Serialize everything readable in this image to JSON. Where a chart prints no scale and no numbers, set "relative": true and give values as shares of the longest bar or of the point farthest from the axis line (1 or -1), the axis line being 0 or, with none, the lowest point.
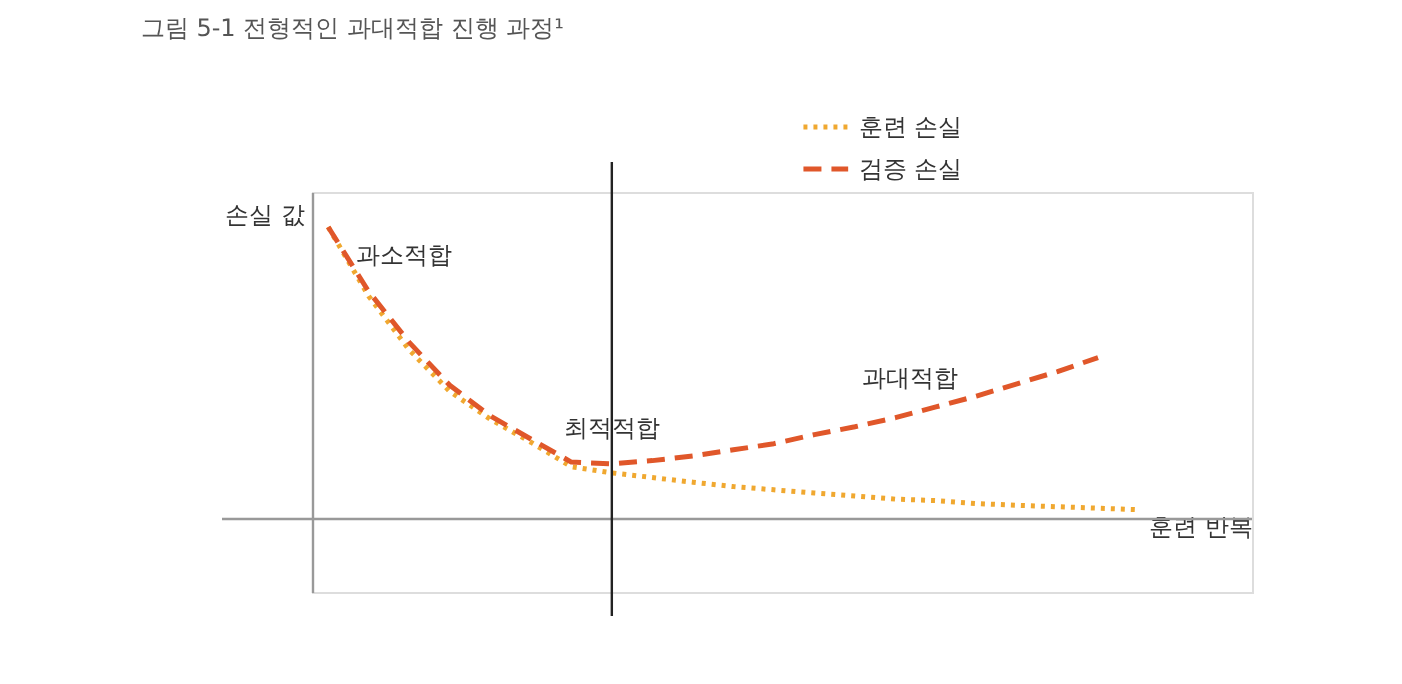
{
  "chart_data": {
    "type": "line",
    "title": "그림 5-1 전형적인 과대적합 진행 과정¹",
    "xlabel": "훈련 반복",
    "ylabel": "손실 값",
    "relative": true,
    "legend": "top right",
    "marker": "none",
    "categories": [
      null,
      null,
      null,
      null,
      null,
      null,
      null,
      null,
      null,
      null,
      null,
      null,
      null,
      null,
      null,
      null,
      null,
      null,
      null,
      null,
      null
    ],
    "series": [
      {
        "name": "훈련 손실",
        "color": "#f0a830",
        "line_style": "dotted",
        "values": [
          1.0,
          0.763,
          0.579,
          0.437,
          0.342,
          0.263,
          0.179,
          0.158,
          0.142,
          0.126,
          0.111,
          0.1,
          0.089,
          0.079,
          0.068,
          0.063,
          0.053,
          0.047,
          0.042,
          0.037,
          0.032
        ]
      },
      {
        "name": "검증 손실",
        "color": "#e0572a",
        "line_style": "dashed",
        "values": [
          1.0,
          0.779,
          0.605,
          0.458,
          0.353,
          0.274,
          0.195,
          0.189,
          0.2,
          0.216,
          0.237,
          0.258,
          0.289,
          0.316,
          0.347,
          0.384,
          0.421,
          0.463,
          0.505,
          0.553,
          null
        ]
      }
    ],
    "ref_lines": [
      {
        "axis": "x",
        "color": "#222222",
        "line_style": "solid"
      }
    ],
    "annotations": [
      "과소적합",
      "최적적합",
      "과대적합"
    ]
  }
}
